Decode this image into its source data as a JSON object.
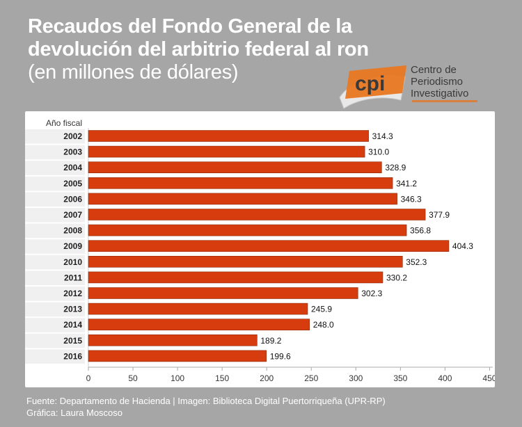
{
  "header": {
    "title_line1": "Recaudos del Fondo General de la",
    "title_line2": "devolución del arbitrio federal al ron",
    "subtitle": "(en millones de dólares)"
  },
  "logo": {
    "mark": "cpi",
    "line1": "Centro de",
    "line2": "Periodismo",
    "line3": "Investigativo",
    "accent_color": "#e87722"
  },
  "chart_data": {
    "type": "bar",
    "orientation": "horizontal",
    "axis_title": "Año fiscal",
    "categories": [
      "2002",
      "2003",
      "2004",
      "2005",
      "2006",
      "2007",
      "2008",
      "2009",
      "2010",
      "2011",
      "2012",
      "2013",
      "2014",
      "2015",
      "2016"
    ],
    "values": [
      314.3,
      310.0,
      328.9,
      341.2,
      346.3,
      377.9,
      356.8,
      404.3,
      352.3,
      330.2,
      302.3,
      245.9,
      248.0,
      189.2,
      199.6
    ],
    "value_labels": [
      "314.3",
      "310.0",
      "328.9",
      "341.2",
      "346.3",
      "377.9",
      "356.8",
      "404.3",
      "352.3",
      "330.2",
      "302.3",
      "245.9",
      "248.0",
      "189.2",
      "199.6"
    ],
    "xlim": [
      0,
      450
    ],
    "x_ticks": [
      "0",
      "50",
      "100",
      "150",
      "200",
      "250",
      "300",
      "350",
      "400",
      "450"
    ],
    "grid": false,
    "bar_color": "#d63c0d",
    "bar_border_color": "#8c2a0a"
  },
  "footer": {
    "line1": "Fuente: Departamento de Hacienda | Imagen: Biblioteca Digital Puertorriqueña (UPR-RP)",
    "line2": "Gráfica: Laura Moscoso"
  }
}
